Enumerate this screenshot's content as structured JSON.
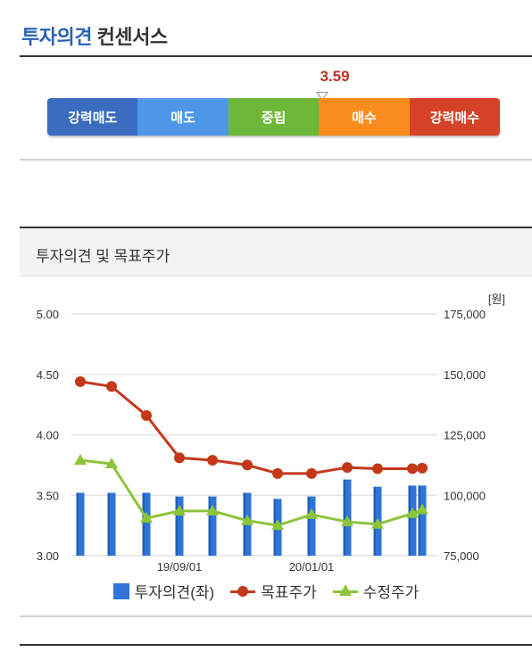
{
  "consensus": {
    "title_accent": "투자의견",
    "title_rest": "컨센서스",
    "score": "3.59",
    "scale": [
      {
        "label": "강력매도",
        "color": "#3a6cbf"
      },
      {
        "label": "매도",
        "color": "#4e97e8"
      },
      {
        "label": "중립",
        "color": "#6fb739"
      },
      {
        "label": "매수",
        "color": "#f88d1e"
      },
      {
        "label": "강력매수",
        "color": "#d64227"
      }
    ]
  },
  "section": {
    "title": "투자의견 및 목표주가"
  },
  "chart_data": {
    "type": "bar",
    "title": "",
    "left_axis": {
      "min": 3.0,
      "max": 5.0,
      "ticks": [
        "3.00",
        "3.50",
        "4.00",
        "4.50",
        "5.00"
      ]
    },
    "right_axis": {
      "unit": "[원]",
      "min": 75000,
      "max": 175000,
      "ticks": [
        "75,000",
        "100,000",
        "125,000",
        "150,000",
        "175,000"
      ]
    },
    "x_tick_labels": [
      "19/09/01",
      "20/01/01"
    ],
    "grid": true,
    "series": [
      {
        "name": "투자의견(좌)",
        "type": "bar",
        "axis": "left",
        "color": "#2f74d8",
        "values": [
          3.52,
          3.52,
          3.52,
          3.49,
          3.49,
          3.52,
          3.47,
          3.49,
          3.63,
          3.57,
          3.58,
          3.58
        ]
      },
      {
        "name": "목표주가",
        "type": "line",
        "axis": "right",
        "color": "#c4381a",
        "marker": "circle",
        "values": [
          147000,
          145000,
          133000,
          115500,
          114500,
          112500,
          109000,
          109000,
          111500,
          111000,
          111000,
          111200
        ]
      },
      {
        "name": "수정주가",
        "type": "line",
        "axis": "right",
        "color": "#8cc43a",
        "marker": "triangle",
        "values": [
          114500,
          113000,
          90500,
          93500,
          93500,
          89500,
          87500,
          92000,
          89000,
          88000,
          92500,
          94000
        ]
      }
    ]
  }
}
